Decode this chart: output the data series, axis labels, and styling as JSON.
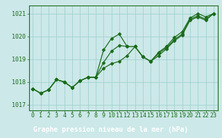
{
  "title": "Graphe pression niveau de la mer (hPa)",
  "hours": [
    0,
    1,
    2,
    3,
    4,
    5,
    6,
    7,
    8,
    9,
    10,
    11,
    12,
    13,
    14,
    15,
    16,
    17,
    18,
    19,
    20,
    21,
    22,
    23
  ],
  "series": [
    [
      1017.7,
      1017.5,
      1017.65,
      1018.1,
      1018.0,
      1017.75,
      1018.05,
      1018.2,
      1018.2,
      1019.4,
      1019.9,
      1020.1,
      1019.55,
      1019.55,
      1019.1,
      1018.9,
      1019.3,
      1019.55,
      1019.95,
      1020.2,
      1020.8,
      1021.0,
      1020.85,
      1021.0
    ],
    [
      1017.7,
      1017.5,
      1017.65,
      1018.1,
      1018.0,
      1017.75,
      1018.05,
      1018.2,
      1018.2,
      1018.85,
      1019.35,
      1019.6,
      1019.55,
      1019.55,
      1019.1,
      1018.9,
      1019.25,
      1019.5,
      1019.85,
      1020.1,
      1020.75,
      1020.9,
      1020.75,
      1021.0
    ],
    [
      1017.7,
      1017.5,
      1017.65,
      1018.1,
      1018.0,
      1017.75,
      1018.05,
      1018.2,
      1018.2,
      1018.6,
      1018.8,
      1018.9,
      1019.15,
      1019.55,
      1019.1,
      1018.9,
      1019.15,
      1019.45,
      1019.8,
      1020.05,
      1020.7,
      1020.85,
      1020.7,
      1021.0
    ]
  ],
  "line_color": "#1a6b1a",
  "marker": "D",
  "markersize": 2.5,
  "linewidth": 0.9,
  "ylim": [
    1016.75,
    1021.35
  ],
  "yticks": [
    1017,
    1018,
    1019,
    1020,
    1021
  ],
  "bg_color": "#cce8e8",
  "grid_color": "#99cccc",
  "title_bg": "#1a6b1a",
  "title_fg": "#ffffff",
  "title_fontsize": 7.0,
  "tick_fontsize": 6.0,
  "axis_color": "#1a6b1a"
}
